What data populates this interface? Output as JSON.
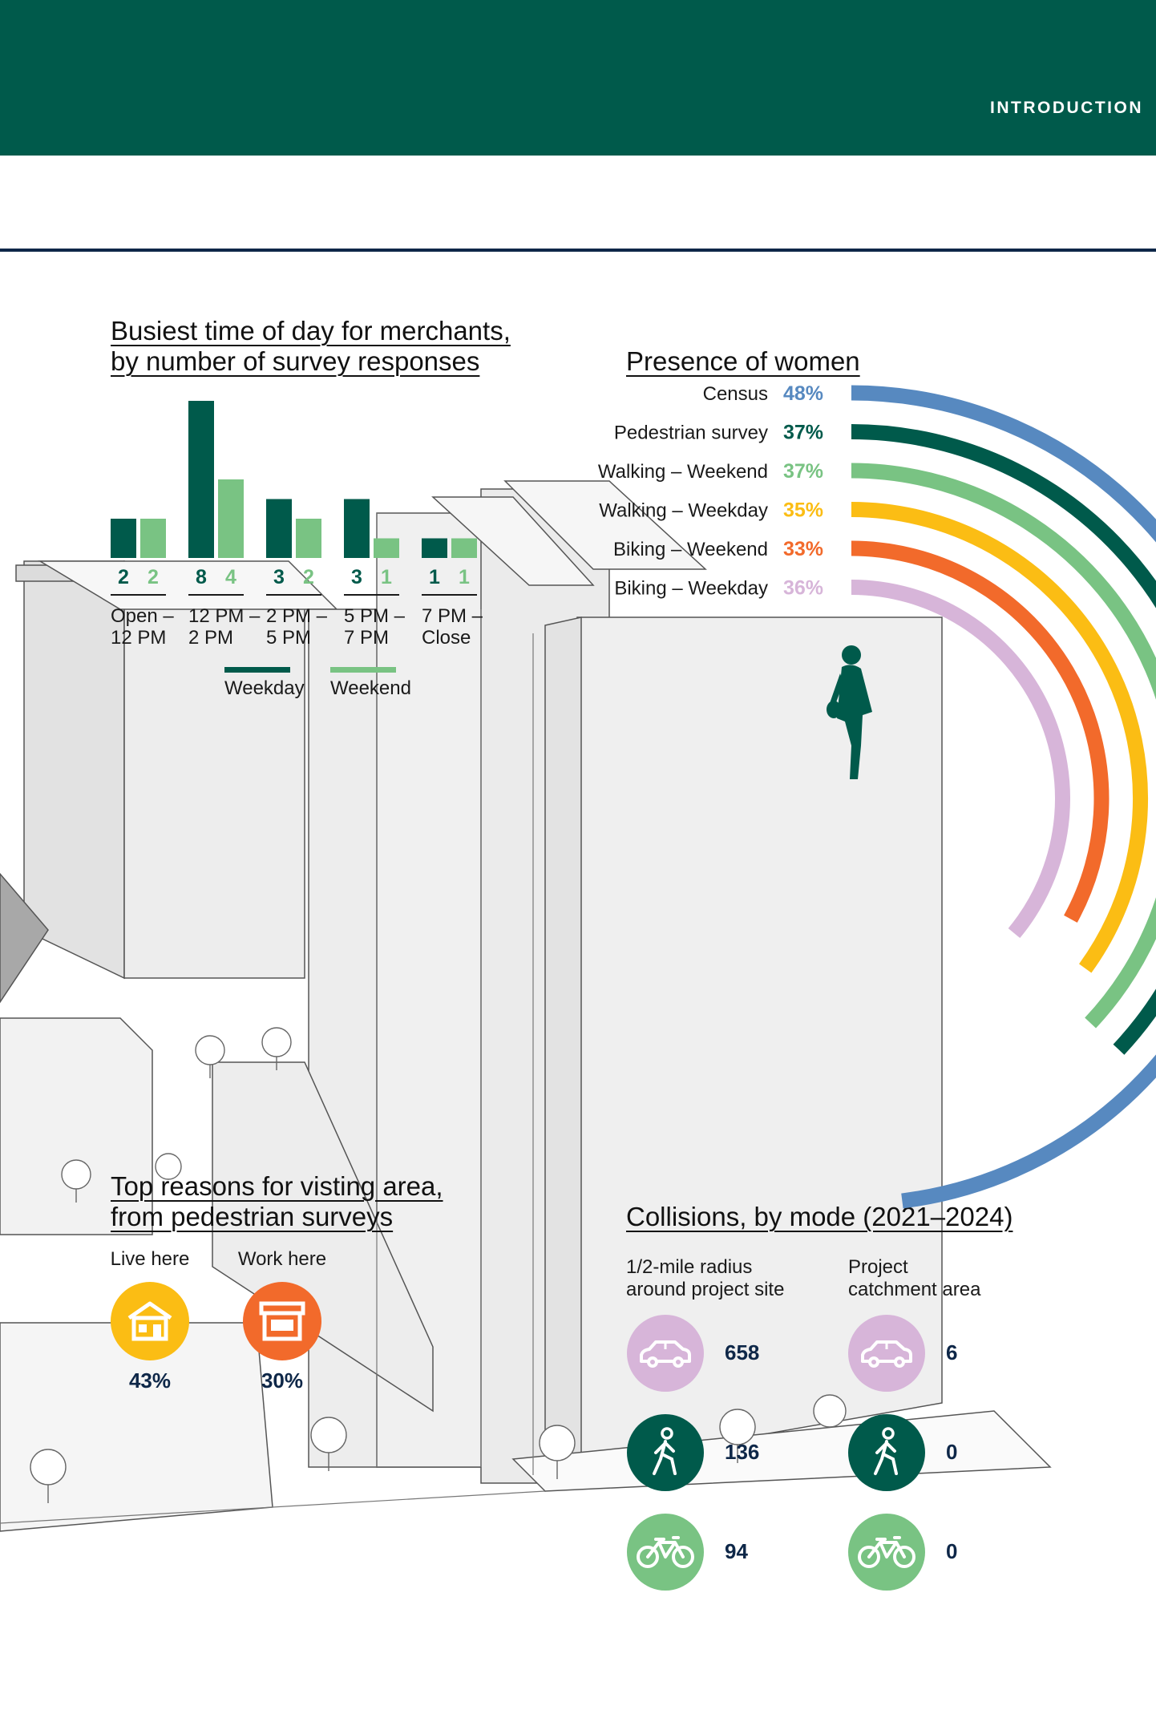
{
  "header": {
    "section_label": "INTRODUCTION"
  },
  "colors": {
    "dark_green": "#005a4b",
    "light_green": "#79c383",
    "blue": "#5789c0",
    "yellow": "#fbbd14",
    "orange": "#f26a2b",
    "lilac": "#d7b5d9",
    "navy": "#0e2748"
  },
  "busiest": {
    "title_line1": "Busiest time of day for merchants,",
    "title_line2": "by number of survey responses",
    "chart_data": {
      "type": "bar",
      "title": "Busiest time of day for merchants, by number of survey responses",
      "categories": [
        "Open – 12 PM",
        "12 PM – 2 PM",
        "2 PM – 5 PM",
        "5 PM – 7 PM",
        "7 PM – Close"
      ],
      "category_lines": [
        [
          "Open –",
          "12 PM"
        ],
        [
          "12 PM –",
          "2 PM"
        ],
        [
          "2 PM –",
          "5 PM"
        ],
        [
          "5 PM –",
          "7 PM"
        ],
        [
          "7 PM –",
          "Close"
        ]
      ],
      "series": [
        {
          "name": "Weekday",
          "values": [
            2,
            8,
            3,
            3,
            1
          ],
          "color": "#005a4b"
        },
        {
          "name": "Weekend",
          "values": [
            2,
            4,
            2,
            1,
            1
          ],
          "color": "#79c383"
        }
      ],
      "ylim": [
        0,
        8
      ],
      "legend": "bottom",
      "grid": false
    }
  },
  "women": {
    "title": "Presence of women",
    "chart_data": {
      "type": "radial-bar",
      "title": "Presence of women",
      "categories": [
        "Census",
        "Pedestrian survey",
        "Walking – Weekend",
        "Walking – Weekday",
        "Biking – Weekend",
        "Biking – Weekday"
      ],
      "values": [
        48,
        37,
        37,
        35,
        33,
        36
      ],
      "labels": [
        "48%",
        "37%",
        "37%",
        "35%",
        "33%",
        "36%"
      ],
      "colors": [
        "#5789c0",
        "#005a4b",
        "#79c383",
        "#fbbd14",
        "#f26a2b",
        "#d7b5d9"
      ],
      "unit": "%"
    }
  },
  "reasons": {
    "title_line1": "Top reasons for visting area,",
    "title_line2": "from pedestrian surveys",
    "items": [
      {
        "label": "Live here",
        "value": "43%",
        "icon": "house-icon",
        "color": "#fbbd14"
      },
      {
        "label": "Work here",
        "value": "30%",
        "icon": "storefront-icon",
        "color": "#f26a2b"
      }
    ]
  },
  "collisions": {
    "title": "Collisions, by mode (2021–2024)",
    "col1_line1": "1/2-mile radius",
    "col1_line2": "around project site",
    "col2_line1": "Project",
    "col2_line2": "catchment area",
    "chart_data": {
      "type": "table",
      "title": "Collisions, by mode (2021–2024)",
      "columns": [
        "1/2-mile radius around project site",
        "Project catchment area"
      ],
      "rows": [
        {
          "mode": "car-icon",
          "values": [
            "658",
            "6"
          ]
        },
        {
          "mode": "pedestrian-icon",
          "values": [
            "136",
            "0"
          ]
        },
        {
          "mode": "bicycle-icon",
          "values": [
            "94",
            "0"
          ]
        }
      ]
    }
  }
}
